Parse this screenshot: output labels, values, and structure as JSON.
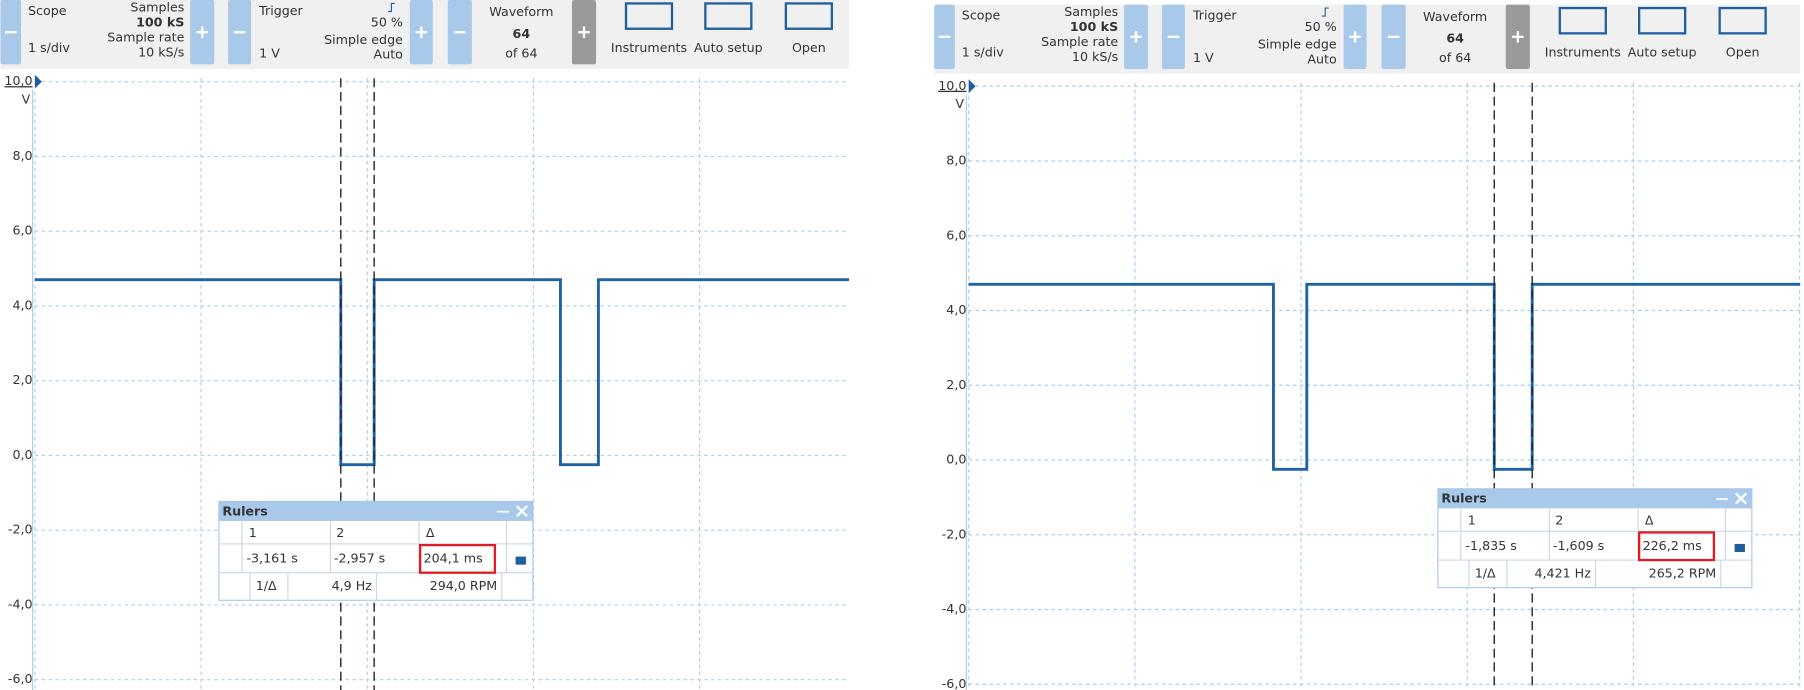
{
  "panels": [
    {
      "toolbar": {
        "scope": {
          "label": "Scope",
          "value": "1 s/div",
          "samples_label": "Samples",
          "samples": "100 kS",
          "rate_label": "Sample rate",
          "rate": "10 kS/s"
        },
        "trigger": {
          "label": "Trigger",
          "value": "1 V",
          "level": "50 %",
          "mode_label": "Simple edge",
          "mode": "Auto"
        },
        "waveform": {
          "label": "Waveform",
          "value": "64",
          "of": "of 64"
        },
        "buttons": [
          "Instruments",
          "Auto setup",
          "Open"
        ]
      },
      "axis": {
        "top": "10,0",
        "unit": "V",
        "ticks": [
          "8,0",
          "6,0",
          "4,0",
          "2,0",
          "0,0",
          "-2,0",
          "-4,0",
          "-6,0"
        ]
      },
      "rulers": {
        "title": "Rulers",
        "headers": [
          "1",
          "2",
          "Δ"
        ],
        "row": [
          "-3,161 s",
          "-2,957 s",
          "204,1 ms"
        ],
        "inv_label": "1/Δ",
        "freq": "4,9 Hz",
        "rpm": "294,0 RPM"
      }
    },
    {
      "toolbar": {
        "scope": {
          "label": "Scope",
          "value": "1 s/div",
          "samples_label": "Samples",
          "samples": "100 kS",
          "rate_label": "Sample rate",
          "rate": "10 kS/s"
        },
        "trigger": {
          "label": "Trigger",
          "value": "1 V",
          "level": "50 %",
          "mode_label": "Simple edge",
          "mode": "Auto"
        },
        "waveform": {
          "label": "Waveform",
          "value": "64",
          "of": "of 64"
        },
        "buttons": [
          "Instruments",
          "Auto setup",
          "Open"
        ]
      },
      "axis": {
        "top": "10,0",
        "unit": "V",
        "ticks": [
          "8,0",
          "6,0",
          "4,0",
          "2,0",
          "0,0",
          "-2,0",
          "-4,0",
          "-6,0"
        ]
      },
      "rulers": {
        "title": "Rulers",
        "headers": [
          "1",
          "2",
          "Δ"
        ],
        "row": [
          "-1,835 s",
          "-1,609 s",
          "226,2 ms"
        ],
        "inv_label": "1/Δ",
        "freq": "4,421 Hz",
        "rpm": "265,2 RPM"
      }
    }
  ]
}
